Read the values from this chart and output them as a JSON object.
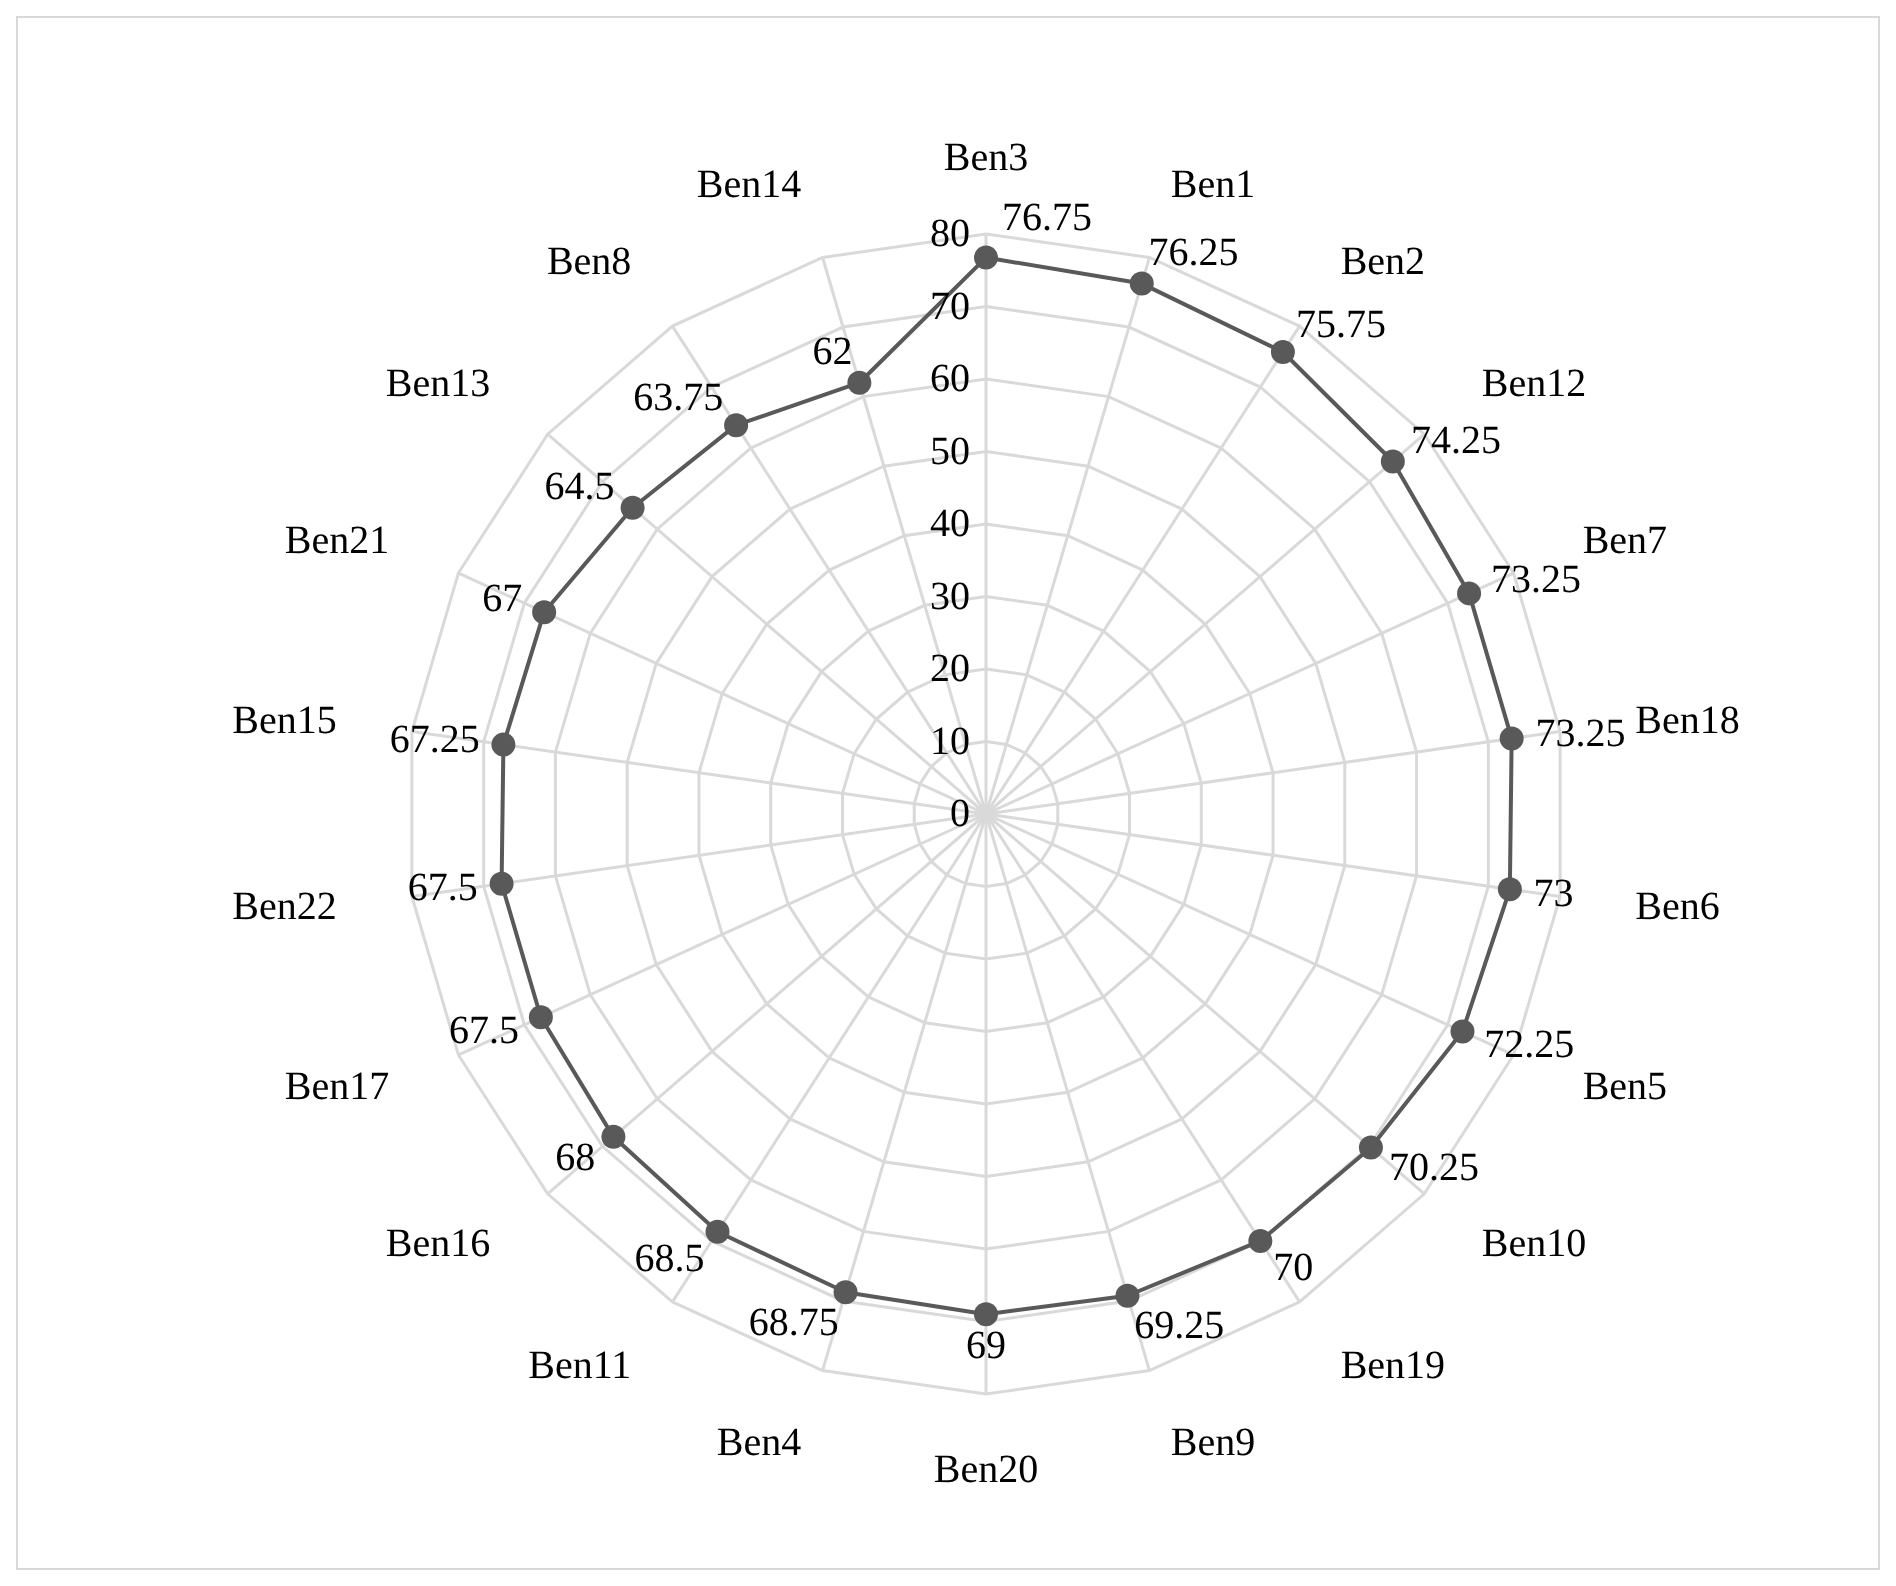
{
  "chart_data": {
    "type": "radar",
    "categories": [
      "Ben3",
      "Ben1",
      "Ben2",
      "Ben12",
      "Ben7",
      "Ben18",
      "Ben6",
      "Ben5",
      "Ben10",
      "Ben19",
      "Ben9",
      "Ben20",
      "Ben4",
      "Ben11",
      "Ben16",
      "Ben17",
      "Ben22",
      "Ben15",
      "Ben21",
      "Ben13",
      "Ben8",
      "Ben14"
    ],
    "series": [
      {
        "color": "#595959",
        "values": [
          76.75,
          76.25,
          75.75,
          74.25,
          73.25,
          73.25,
          73,
          72.25,
          70.25,
          70,
          69.25,
          69,
          68.75,
          68.5,
          68,
          67.5,
          67.5,
          67.25,
          67,
          64.5,
          63.75,
          62
        ]
      }
    ],
    "ylim": [
      0,
      80
    ],
    "yticks": [
      0,
      10,
      20,
      30,
      40,
      50,
      60,
      70,
      80
    ],
    "grid": true,
    "marker": "circle",
    "data_labels": true,
    "legend": false
  }
}
